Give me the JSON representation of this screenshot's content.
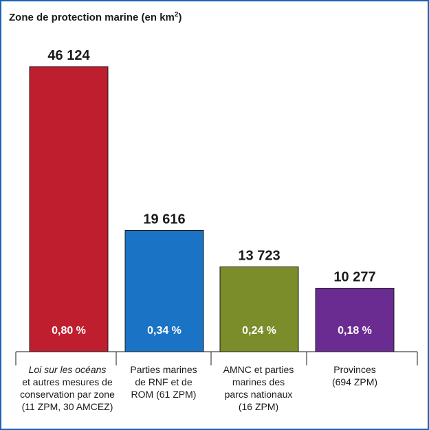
{
  "chart_data": {
    "type": "bar",
    "title": "Zone de protection marine (en km",
    "title_sup": "2",
    "title_end": ")",
    "categories": [
      {
        "lines": [
          "Loi sur les océans",
          "et autres mesures de",
          "conservation par zone",
          "(11 ZPM, 30 AMCEZ)"
        ],
        "italic_first": true
      },
      {
        "lines": [
          "Parties marines",
          "de RNF et de",
          "ROM (61 ZPM)"
        ]
      },
      {
        "lines": [
          "AMNC et parties",
          "marines des",
          "parcs nationaux",
          "(16 ZPM)"
        ]
      },
      {
        "lines": [
          "Provinces",
          "(694 ZPM)"
        ]
      }
    ],
    "values": [
      46124,
      19616,
      13723,
      10277
    ],
    "value_labels": [
      "46 124",
      "19 616",
      "13 723",
      "10 277"
    ],
    "percent_labels": [
      "0,80 %",
      "0,34 %",
      "0,24 %",
      "0,18 %"
    ],
    "colors": [
      "#bf1e2e",
      "#1a73c4",
      "#7a8d2a",
      "#6a2c91"
    ],
    "ylim": [
      0,
      46124
    ],
    "grid": false,
    "legend": "none"
  }
}
